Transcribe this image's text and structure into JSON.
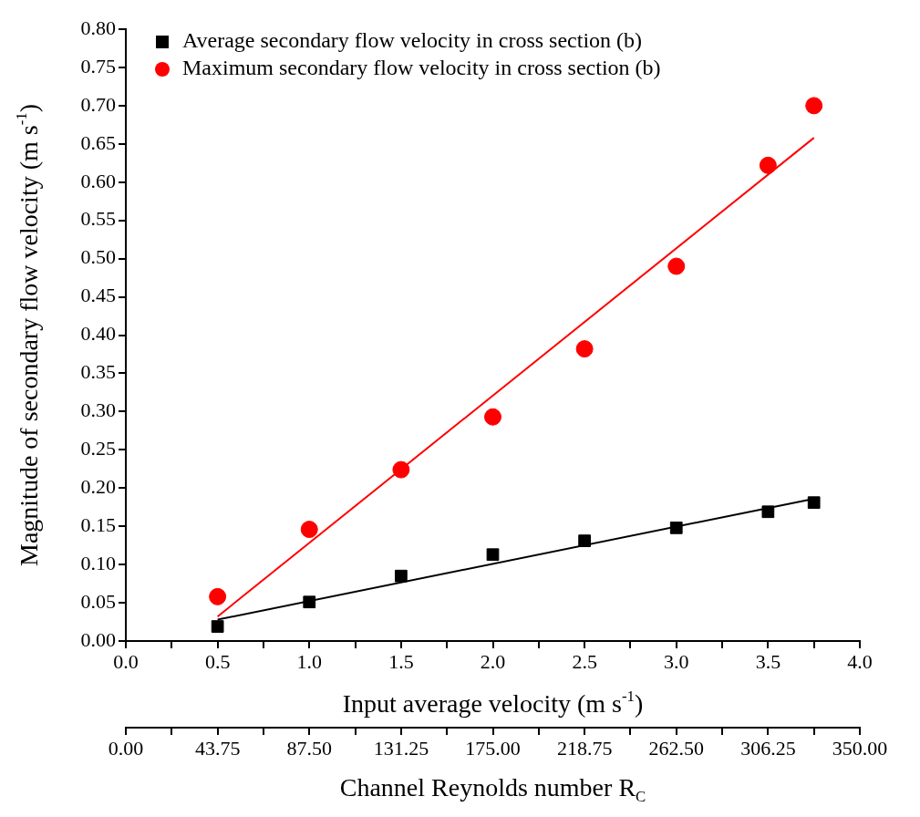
{
  "chart_data": {
    "type": "scatter",
    "xlabel": "Input average velocity (m s$^{-1}$)",
    "ylabel": "Magnitude of secondary flow velocity (m s$^{-1}$)",
    "x2label": "Channel Reynolds number R$_{C}$",
    "xlim": [
      0,
      4
    ],
    "xticks": [
      {
        "value": 0,
        "label": "0.0"
      },
      {
        "value": 0.25,
        "label": null
      },
      {
        "value": 0.5,
        "label": "0.5"
      },
      {
        "value": 0.75,
        "label": null
      },
      {
        "value": 1,
        "label": "1.0"
      },
      {
        "value": 1.25,
        "label": null
      },
      {
        "value": 1.5,
        "label": "1.5"
      },
      {
        "value": 1.75,
        "label": null
      },
      {
        "value": 2,
        "label": "2.0"
      },
      {
        "value": 2.25,
        "label": null
      },
      {
        "value": 2.5,
        "label": "2.5"
      },
      {
        "value": 2.75,
        "label": null
      },
      {
        "value": 3,
        "label": "3.0"
      },
      {
        "value": 3.25,
        "label": null
      },
      {
        "value": 3.5,
        "label": "3.5"
      },
      {
        "value": 3.75,
        "label": null
      },
      {
        "value": 4,
        "label": "4.0"
      }
    ],
    "x2lim": [
      0,
      350
    ],
    "x2ticks": [
      {
        "value": 0,
        "label": "0.00"
      },
      {
        "value": 21.875,
        "label": null
      },
      {
        "value": 43.75,
        "label": "43.75"
      },
      {
        "value": 65.625,
        "label": null
      },
      {
        "value": 87.5,
        "label": "87.50"
      },
      {
        "value": 109.375,
        "label": null
      },
      {
        "value": 131.25,
        "label": "131.25"
      },
      {
        "value": 153.125,
        "label": null
      },
      {
        "value": 175,
        "label": "175.00"
      },
      {
        "value": 196.875,
        "label": null
      },
      {
        "value": 218.75,
        "label": "218.75"
      },
      {
        "value": 240.625,
        "label": null
      },
      {
        "value": 262.5,
        "label": "262.50"
      },
      {
        "value": 284.375,
        "label": null
      },
      {
        "value": 306.25,
        "label": "306.25"
      },
      {
        "value": 328.125,
        "label": null
      },
      {
        "value": 350,
        "label": "350.00"
      }
    ],
    "ylim": [
      0,
      0.8
    ],
    "yticks": [
      {
        "value": 0,
        "label": "0.00"
      },
      {
        "value": 0.05,
        "label": "0.05"
      },
      {
        "value": 0.1,
        "label": "0.10"
      },
      {
        "value": 0.15,
        "label": "0.15"
      },
      {
        "value": 0.2,
        "label": "0.20"
      },
      {
        "value": 0.25,
        "label": "0.25"
      },
      {
        "value": 0.3,
        "label": "0.30"
      },
      {
        "value": 0.35,
        "label": "0.35"
      },
      {
        "value": 0.4,
        "label": "0.40"
      },
      {
        "value": 0.45,
        "label": "0.45"
      },
      {
        "value": 0.5,
        "label": "0.50"
      },
      {
        "value": 0.55,
        "label": "0.55"
      },
      {
        "value": 0.6,
        "label": "0.60"
      },
      {
        "value": 0.65,
        "label": "0.65"
      },
      {
        "value": 0.7,
        "label": "0.70"
      },
      {
        "value": 0.75,
        "label": "0.75"
      },
      {
        "value": 0.8,
        "label": "0.80"
      }
    ],
    "grid": false,
    "legend": "top left",
    "series": [
      {
        "name": "Average secondary flow velocity in cross section (b)",
        "marker": "square",
        "color": "#000000",
        "x": [
          0.5,
          1,
          1.5,
          2,
          2.5,
          3,
          3.5,
          3.75
        ],
        "values": [
          0.019,
          0.051,
          0.085,
          0.113,
          0.131,
          0.148,
          0.169,
          0.181
        ]
      },
      {
        "name": "Maximum secondary flow velocity in cross section (b)",
        "marker": "circle",
        "color": "#ff0000",
        "x": [
          0.5,
          1,
          1.5,
          2,
          2.5,
          3,
          3.5,
          3.75
        ],
        "values": [
          0.058,
          0.146,
          0.224,
          0.293,
          0.382,
          0.49,
          0.622,
          0.7
        ]
      },
      {
        "type": "line",
        "marker": "none",
        "color": "#000000",
        "x": [
          0.5,
          3.75
        ],
        "values": [
          0.028,
          0.186
        ]
      },
      {
        "type": "line",
        "marker": "none",
        "color": "#ff0000",
        "x": [
          0.5,
          3.75
        ],
        "values": [
          0.032,
          0.658
        ]
      }
    ]
  }
}
